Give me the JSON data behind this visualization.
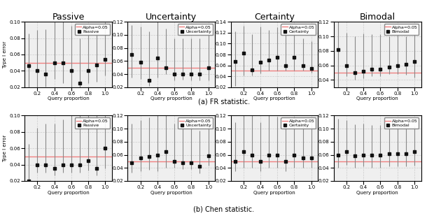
{
  "titles_row1": [
    "Passive",
    "Uncertainty",
    "Certainty",
    "Bimodal"
  ],
  "legend_labels_row1": [
    "Passive",
    "Uncertainty",
    "Certainty",
    "Bimodal"
  ],
  "legend_labels_row2": [
    "Passive",
    "Uncertainty",
    "Certainty",
    "Bimodal"
  ],
  "caption_a": "(a) FR statistic.",
  "caption_b": "(b) Chen statistic.",
  "xlabel": "Query proportion",
  "ylabel": "Type I error",
  "alpha_line": 0.05,
  "alpha_label": "Alpha=0.05",
  "x_ticks": [
    0.2,
    0.4,
    0.6,
    0.8,
    1.0
  ],
  "x_positions": [
    0.1,
    0.2,
    0.3,
    0.4,
    0.5,
    0.6,
    0.7,
    0.8,
    0.9,
    1.0
  ],
  "row1": {
    "Passive": {
      "y": [
        0.046,
        0.04,
        0.036,
        0.05,
        0.05,
        0.04,
        0.025,
        0.04,
        0.047,
        0.054
      ],
      "yerr_lo": [
        0.03,
        0.02,
        0.015,
        0.02,
        0.025,
        0.02,
        0.005,
        0.015,
        0.02,
        0.02
      ],
      "yerr_hi": [
        0.04,
        0.05,
        0.055,
        0.055,
        0.055,
        0.055,
        0.055,
        0.05,
        0.04,
        0.045
      ],
      "ylim": [
        0.02,
        0.1
      ]
    },
    "Uncertainty": {
      "y": [
        0.07,
        0.058,
        0.03,
        0.065,
        0.05,
        0.04,
        0.04,
        0.04,
        0.04,
        0.05
      ],
      "yerr_lo": [
        0.035,
        0.025,
        0.008,
        0.03,
        0.01,
        0.01,
        0.008,
        0.01,
        0.01,
        0.02
      ],
      "yerr_hi": [
        0.045,
        0.055,
        0.075,
        0.065,
        0.06,
        0.055,
        0.055,
        0.055,
        0.055,
        0.055
      ],
      "ylim": [
        0.02,
        0.12
      ]
    },
    "Certainty": {
      "y": [
        0.067,
        0.082,
        0.052,
        0.066,
        0.07,
        0.075,
        0.06,
        0.075,
        0.06,
        0.055
      ],
      "yerr_lo": [
        0.045,
        0.04,
        0.01,
        0.02,
        0.02,
        0.025,
        0.01,
        0.025,
        0.01,
        0.008
      ],
      "yerr_hi": [
        0.055,
        0.05,
        0.065,
        0.065,
        0.055,
        0.055,
        0.065,
        0.055,
        0.05,
        0.05
      ],
      "ylim": [
        0.02,
        0.14
      ]
    },
    "Bimodal": {
      "y": [
        0.082,
        0.06,
        0.05,
        0.052,
        0.055,
        0.055,
        0.058,
        0.06,
        0.062,
        0.065
      ],
      "yerr_lo": [
        0.052,
        0.015,
        0.01,
        0.01,
        0.01,
        0.01,
        0.01,
        0.012,
        0.015,
        0.022
      ],
      "yerr_hi": [
        0.038,
        0.045,
        0.05,
        0.052,
        0.048,
        0.048,
        0.042,
        0.042,
        0.038,
        0.038
      ],
      "ylim": [
        0.03,
        0.12
      ]
    }
  },
  "row2": {
    "Passive": {
      "y": [
        0.02,
        0.04,
        0.04,
        0.035,
        0.04,
        0.04,
        0.04,
        0.045,
        0.035,
        0.06
      ],
      "yerr_lo": [
        0.005,
        0.01,
        0.01,
        0.008,
        0.01,
        0.01,
        0.01,
        0.012,
        0.008,
        0.025
      ],
      "yerr_hi": [
        0.045,
        0.045,
        0.05,
        0.055,
        0.055,
        0.06,
        0.06,
        0.06,
        0.065,
        0.05
      ],
      "ylim": [
        0.02,
        0.1
      ]
    },
    "Uncertainty": {
      "y": [
        0.048,
        0.055,
        0.057,
        0.06,
        0.065,
        0.05,
        0.048,
        0.048,
        0.042,
        0.058
      ],
      "yerr_lo": [
        0.015,
        0.02,
        0.02,
        0.025,
        0.025,
        0.01,
        0.01,
        0.01,
        0.01,
        0.015
      ],
      "yerr_hi": [
        0.06,
        0.058,
        0.06,
        0.06,
        0.06,
        0.058,
        0.058,
        0.058,
        0.055,
        0.048
      ],
      "ylim": [
        0.02,
        0.12
      ]
    },
    "Certainty": {
      "y": [
        0.05,
        0.065,
        0.06,
        0.05,
        0.06,
        0.06,
        0.05,
        0.06,
        0.055,
        0.055
      ],
      "yerr_lo": [
        0.015,
        0.025,
        0.02,
        0.015,
        0.02,
        0.02,
        0.015,
        0.02,
        0.015,
        0.015
      ],
      "yerr_hi": [
        0.06,
        0.055,
        0.06,
        0.06,
        0.06,
        0.058,
        0.06,
        0.058,
        0.058,
        0.058
      ],
      "ylim": [
        0.02,
        0.12
      ]
    },
    "Bimodal": {
      "y": [
        0.06,
        0.065,
        0.058,
        0.06,
        0.06,
        0.06,
        0.062,
        0.062,
        0.062,
        0.065
      ],
      "yerr_lo": [
        0.02,
        0.02,
        0.018,
        0.018,
        0.02,
        0.02,
        0.02,
        0.02,
        0.02,
        0.022
      ],
      "yerr_hi": [
        0.055,
        0.048,
        0.048,
        0.048,
        0.045,
        0.045,
        0.042,
        0.042,
        0.04,
        0.038
      ],
      "ylim": [
        0.02,
        0.12
      ]
    }
  },
  "marker_color": "#111111",
  "marker": "s",
  "marker_size": 3,
  "errorbar_color": "#888888",
  "alpha_line_color": "#f08080",
  "grid_color": "#cccccc",
  "bg_color": "#efefef",
  "title_fontsize": 9,
  "label_fontsize": 5,
  "tick_fontsize": 5,
  "legend_fontsize": 4.5,
  "caption_fontsize": 7
}
